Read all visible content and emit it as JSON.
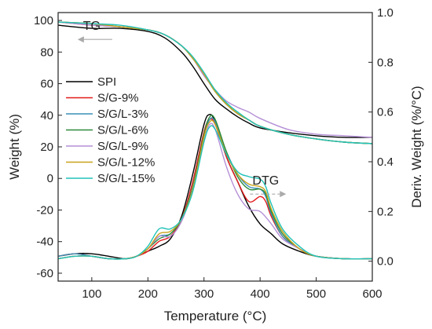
{
  "chart_data": {
    "type": "line",
    "xlabel": "Temperature (°C)",
    "ylabel_left": "Weight (%)",
    "ylabel_right": "Deriv. Weight (%/°C)",
    "xlim": [
      40,
      600
    ],
    "ylim_left": [
      -65,
      105
    ],
    "ylim_right": [
      -0.08,
      1.0
    ],
    "x_ticks": [
      100,
      200,
      300,
      400,
      500,
      600
    ],
    "y_left_ticks": [
      -60,
      -40,
      -20,
      0,
      20,
      40,
      60,
      80,
      100
    ],
    "y_right_ticks": [
      0.0,
      0.2,
      0.4,
      0.6,
      0.8,
      1.0
    ],
    "grid": false,
    "legend_position": "center-left",
    "annotations": [
      {
        "text": "TG",
        "arrow": "left",
        "x": 100,
        "y": 88,
        "axis": "left"
      },
      {
        "text": "DTG",
        "arrow": "right",
        "x": 410,
        "y": 0.27,
        "axis": "right"
      }
    ],
    "series": [
      {
        "name": "SPI",
        "color": "#000000",
        "tg": {
          "x": [
            40,
            100,
            150,
            200,
            230,
            260,
            280,
            300,
            320,
            340,
            360,
            380,
            400,
            450,
            500,
            550,
            600
          ],
          "y": [
            97,
            95,
            95,
            93,
            89,
            80,
            71,
            60,
            50,
            44,
            39,
            35,
            32,
            29,
            27,
            26,
            26
          ]
        },
        "dtg": {
          "x": [
            40,
            70,
            100,
            130,
            160,
            180,
            200,
            220,
            240,
            260,
            280,
            300,
            310,
            320,
            340,
            360,
            380,
            400,
            420,
            440,
            470,
            500,
            550,
            600
          ],
          "y": [
            0.02,
            0.03,
            0.03,
            0.02,
            0.01,
            0.02,
            0.04,
            0.06,
            0.09,
            0.18,
            0.35,
            0.55,
            0.59,
            0.56,
            0.42,
            0.32,
            0.22,
            0.15,
            0.11,
            0.07,
            0.04,
            0.02,
            0.01,
            0.01
          ]
        }
      },
      {
        "name": "S/G-9%",
        "color": "#e41a1c",
        "tg": {
          "x": [
            40,
            100,
            150,
            200,
            230,
            260,
            280,
            300,
            320,
            340,
            360,
            380,
            400,
            450,
            500,
            550,
            600
          ],
          "y": [
            99,
            97,
            96,
            94,
            91,
            84,
            76,
            66,
            55,
            47,
            41,
            37,
            33,
            28,
            25,
            23,
            22
          ]
        },
        "dtg": {
          "x": [
            40,
            70,
            100,
            130,
            160,
            180,
            200,
            220,
            240,
            260,
            280,
            300,
            310,
            320,
            340,
            360,
            380,
            400,
            410,
            420,
            440,
            470,
            500,
            550,
            600
          ],
          "y": [
            0.02,
            0.03,
            0.02,
            0.01,
            0.01,
            0.02,
            0.04,
            0.08,
            0.1,
            0.17,
            0.32,
            0.52,
            0.57,
            0.55,
            0.42,
            0.32,
            0.24,
            0.26,
            0.24,
            0.18,
            0.1,
            0.05,
            0.02,
            0.01,
            0.01
          ]
        }
      },
      {
        "name": "S/G/L-3%",
        "color": "#3a8fb7",
        "tg": {
          "x": [
            40,
            100,
            150,
            200,
            230,
            260,
            280,
            300,
            320,
            340,
            360,
            380,
            400,
            450,
            500,
            550,
            600
          ],
          "y": [
            99,
            98,
            96,
            94,
            91,
            84,
            76,
            66,
            55,
            47,
            41,
            37,
            33,
            28,
            25,
            23,
            22
          ]
        },
        "dtg": {
          "x": [
            40,
            70,
            100,
            130,
            160,
            180,
            200,
            220,
            240,
            260,
            280,
            300,
            310,
            320,
            340,
            360,
            380,
            400,
            410,
            420,
            440,
            470,
            500,
            550,
            600
          ],
          "y": [
            0.02,
            0.03,
            0.02,
            0.01,
            0.01,
            0.02,
            0.05,
            0.1,
            0.11,
            0.17,
            0.3,
            0.5,
            0.57,
            0.56,
            0.44,
            0.35,
            0.3,
            0.29,
            0.26,
            0.19,
            0.1,
            0.05,
            0.02,
            0.01,
            0.01
          ]
        }
      },
      {
        "name": "S/G/L-6%",
        "color": "#2e8b3a",
        "tg": {
          "x": [
            40,
            100,
            150,
            200,
            230,
            260,
            280,
            300,
            320,
            340,
            360,
            380,
            400,
            450,
            500,
            550,
            600
          ],
          "y": [
            99,
            98,
            96,
            94,
            91,
            84,
            76,
            66,
            55,
            47,
            41,
            37,
            33,
            28,
            25,
            23,
            22
          ]
        },
        "dtg": {
          "x": [
            40,
            70,
            100,
            130,
            160,
            180,
            200,
            220,
            240,
            260,
            280,
            300,
            310,
            320,
            340,
            360,
            380,
            400,
            410,
            420,
            440,
            470,
            500,
            550,
            600
          ],
          "y": [
            0.01,
            0.02,
            0.02,
            0.01,
            0.01,
            0.02,
            0.05,
            0.09,
            0.11,
            0.17,
            0.3,
            0.51,
            0.58,
            0.57,
            0.44,
            0.34,
            0.29,
            0.29,
            0.27,
            0.2,
            0.11,
            0.05,
            0.02,
            0.01,
            0.01
          ]
        }
      },
      {
        "name": "S/G/L-9%",
        "color": "#b48fd6",
        "tg": {
          "x": [
            40,
            100,
            150,
            200,
            230,
            260,
            280,
            300,
            320,
            340,
            360,
            380,
            400,
            450,
            500,
            550,
            600
          ],
          "y": [
            99,
            97,
            96,
            94,
            91,
            84,
            76,
            65,
            56,
            49,
            45,
            42,
            38,
            31,
            28,
            27,
            26
          ]
        },
        "dtg": {
          "x": [
            40,
            70,
            100,
            130,
            160,
            180,
            200,
            220,
            240,
            260,
            280,
            300,
            310,
            320,
            340,
            360,
            380,
            400,
            420,
            440,
            470,
            500,
            550,
            600
          ],
          "y": [
            0.01,
            0.02,
            0.02,
            0.01,
            0.01,
            0.02,
            0.05,
            0.1,
            0.1,
            0.16,
            0.29,
            0.48,
            0.55,
            0.53,
            0.38,
            0.27,
            0.21,
            0.2,
            0.15,
            0.09,
            0.05,
            0.02,
            0.01,
            0.01
          ]
        }
      },
      {
        "name": "S/G/L-12%",
        "color": "#c8a21a",
        "tg": {
          "x": [
            40,
            100,
            150,
            200,
            230,
            260,
            280,
            300,
            320,
            340,
            360,
            380,
            400,
            450,
            500,
            550,
            600
          ],
          "y": [
            99,
            98,
            96,
            94,
            91,
            84,
            76,
            66,
            55,
            47,
            41,
            37,
            33,
            28,
            25,
            23,
            22
          ]
        },
        "dtg": {
          "x": [
            40,
            70,
            100,
            130,
            160,
            180,
            200,
            220,
            240,
            260,
            280,
            300,
            310,
            320,
            340,
            360,
            380,
            400,
            410,
            420,
            440,
            470,
            500,
            550,
            600
          ],
          "y": [
            0.01,
            0.02,
            0.02,
            0.01,
            0.01,
            0.02,
            0.05,
            0.11,
            0.12,
            0.17,
            0.29,
            0.5,
            0.56,
            0.55,
            0.43,
            0.35,
            0.31,
            0.3,
            0.28,
            0.21,
            0.12,
            0.05,
            0.02,
            0.01,
            0.01
          ]
        }
      },
      {
        "name": "S/G/L-15%",
        "color": "#20c2b8",
        "tg": {
          "x": [
            40,
            100,
            150,
            200,
            230,
            260,
            280,
            300,
            320,
            340,
            360,
            380,
            400,
            450,
            500,
            550,
            600
          ],
          "y": [
            99,
            98,
            97,
            94,
            91,
            84,
            77,
            67,
            56,
            48,
            42,
            37,
            33,
            28,
            25,
            23,
            22
          ]
        },
        "dtg": {
          "x": [
            40,
            70,
            100,
            130,
            160,
            180,
            200,
            220,
            240,
            260,
            280,
            300,
            310,
            320,
            340,
            360,
            380,
            400,
            410,
            420,
            440,
            470,
            500,
            550,
            600
          ],
          "y": [
            0.01,
            0.02,
            0.02,
            0.01,
            0.01,
            0.02,
            0.06,
            0.13,
            0.13,
            0.17,
            0.28,
            0.48,
            0.54,
            0.53,
            0.43,
            0.36,
            0.34,
            0.33,
            0.3,
            0.23,
            0.13,
            0.06,
            0.02,
            0.01,
            0.01
          ]
        }
      }
    ]
  }
}
